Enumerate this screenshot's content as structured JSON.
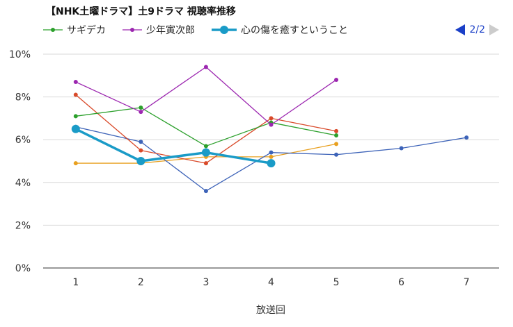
{
  "title": "【NHK土曜ドラマ】土9ドラマ 視聴率推移",
  "pager": {
    "text": "2/2",
    "prev_icon": "triangle-left-icon",
    "next_icon": "triangle-right-icon"
  },
  "colors": {
    "grid": "#d9d9d9",
    "axis": "#333333",
    "pager_active": "#1a3fc7",
    "pager_inactive": "#cccccc"
  },
  "chart_data": {
    "type": "line",
    "title": "【NHK土曜ドラマ】土9ドラマ 視聴率推移",
    "xlabel": "放送回",
    "ylabel": "",
    "x": [
      1,
      2,
      3,
      4,
      5,
      6,
      7
    ],
    "xlim": [
      0.5,
      7.5
    ],
    "ylim": [
      0,
      10
    ],
    "yticks": [
      0,
      2,
      4,
      6,
      8,
      10
    ],
    "ytick_labels": [
      "0%",
      "2%",
      "4%",
      "6%",
      "8%",
      "10%"
    ],
    "grid": true,
    "legend_position": "top",
    "series": [
      {
        "name": "",
        "color": "#e8a020",
        "width": 1.3,
        "marker": 3,
        "values": [
          4.9,
          4.9,
          5.2,
          5.2,
          5.8,
          null,
          null
        ]
      },
      {
        "name": "",
        "color": "#3d63b8",
        "width": 1.3,
        "marker": 3,
        "values": [
          6.6,
          5.9,
          3.6,
          5.4,
          5.3,
          5.6,
          6.1
        ]
      },
      {
        "name": "",
        "color": "#d94a2a",
        "width": 1.3,
        "marker": 3,
        "values": [
          8.1,
          5.5,
          4.9,
          7.0,
          6.4,
          null,
          null
        ]
      },
      {
        "name": "サギデカ",
        "color": "#2ca02c",
        "width": 1.3,
        "marker": 3,
        "values": [
          7.1,
          7.5,
          5.7,
          6.8,
          6.2,
          null,
          null
        ]
      },
      {
        "name": "少年寅次郎",
        "color": "#9c27b0",
        "width": 1.3,
        "marker": 3,
        "values": [
          8.7,
          7.3,
          9.4,
          6.7,
          8.8,
          null,
          null
        ]
      },
      {
        "name": "心の傷を癒すということ",
        "color": "#1a9bc7",
        "width": 3.5,
        "marker": 6,
        "values": [
          6.5,
          5.0,
          5.4,
          4.9,
          null,
          null,
          null
        ]
      }
    ]
  }
}
